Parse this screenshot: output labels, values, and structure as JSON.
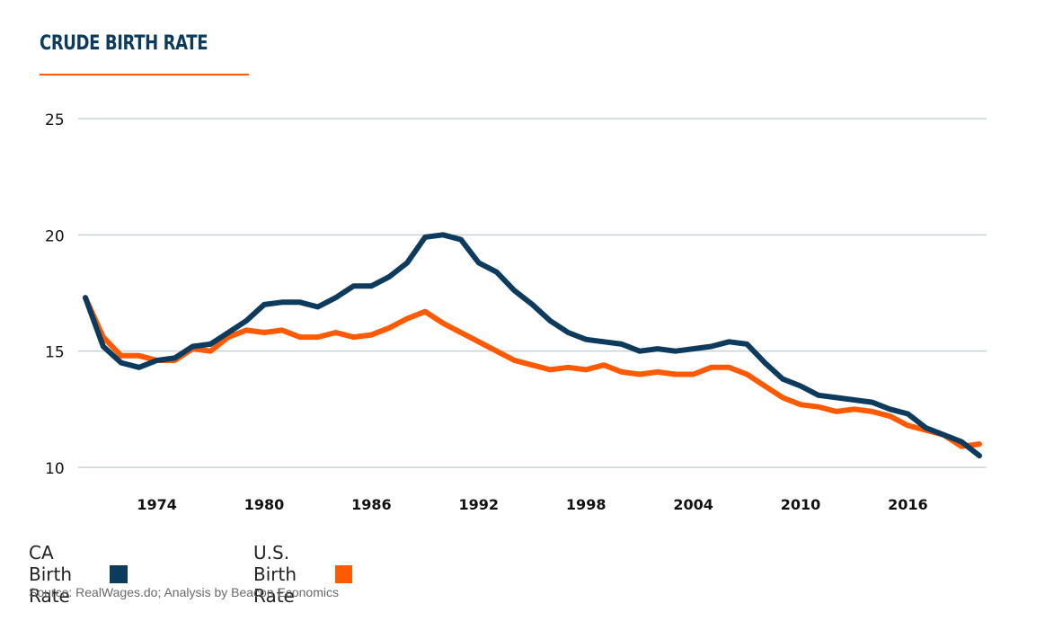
{
  "title": "CRUDE BIRTH RATE",
  "source": "Source: RealWages.do; Analysis by Beacon Economics",
  "colors": {
    "title": "#0d3b5e",
    "accent": "#ff5a00",
    "ca": "#0d3b5e",
    "us": "#ff5a00",
    "grid": "#c9d3d6"
  },
  "chart_data": {
    "type": "line",
    "title": "CRUDE BIRTH RATE",
    "xlabel": "",
    "ylabel": "",
    "xlim": [
      1970,
      2020
    ],
    "ylim": [
      10,
      25
    ],
    "yticks": [
      10,
      15,
      20,
      25
    ],
    "xticks": [
      1974,
      1980,
      1986,
      1992,
      1998,
      2004,
      2010,
      2016
    ],
    "grid": true,
    "legend": "bottom-left",
    "x": [
      1970,
      1971,
      1972,
      1973,
      1974,
      1975,
      1976,
      1977,
      1978,
      1979,
      1980,
      1981,
      1982,
      1983,
      1984,
      1985,
      1986,
      1987,
      1988,
      1989,
      1990,
      1991,
      1992,
      1993,
      1994,
      1995,
      1996,
      1997,
      1998,
      1999,
      2000,
      2001,
      2002,
      2003,
      2004,
      2005,
      2006,
      2007,
      2008,
      2009,
      2010,
      2011,
      2012,
      2013,
      2014,
      2015,
      2016,
      2017,
      2018,
      2019,
      2020
    ],
    "series": [
      {
        "name": "CA Birth Rate",
        "color": "#0d3b5e",
        "values": [
          17.3,
          15.2,
          14.5,
          14.3,
          14.6,
          14.7,
          15.2,
          15.3,
          15.8,
          16.3,
          17.0,
          17.1,
          17.1,
          16.9,
          17.3,
          17.8,
          17.8,
          18.2,
          18.8,
          19.9,
          20.0,
          19.8,
          18.8,
          18.4,
          17.6,
          17.0,
          16.3,
          15.8,
          15.5,
          15.4,
          15.3,
          15.0,
          15.1,
          15.0,
          15.1,
          15.2,
          15.4,
          15.3,
          14.5,
          13.8,
          13.5,
          13.1,
          13.0,
          12.9,
          12.8,
          12.5,
          12.3,
          11.7,
          11.4,
          11.1,
          10.5
        ]
      },
      {
        "name": "U.S. Birth Rate",
        "color": "#ff5a00",
        "values": [
          17.3,
          15.6,
          14.8,
          14.8,
          14.6,
          14.6,
          15.1,
          15.0,
          15.6,
          15.9,
          15.8,
          15.9,
          15.6,
          15.6,
          15.8,
          15.6,
          15.7,
          16.0,
          16.4,
          16.7,
          16.2,
          15.8,
          15.4,
          15.0,
          14.6,
          14.4,
          14.2,
          14.3,
          14.2,
          14.4,
          14.1,
          14.0,
          14.1,
          14.0,
          14.0,
          14.3,
          14.3,
          14.0,
          13.5,
          13.0,
          12.7,
          12.6,
          12.4,
          12.5,
          12.4,
          12.2,
          11.8,
          11.6,
          11.4,
          10.9,
          11.0
        ]
      }
    ]
  }
}
